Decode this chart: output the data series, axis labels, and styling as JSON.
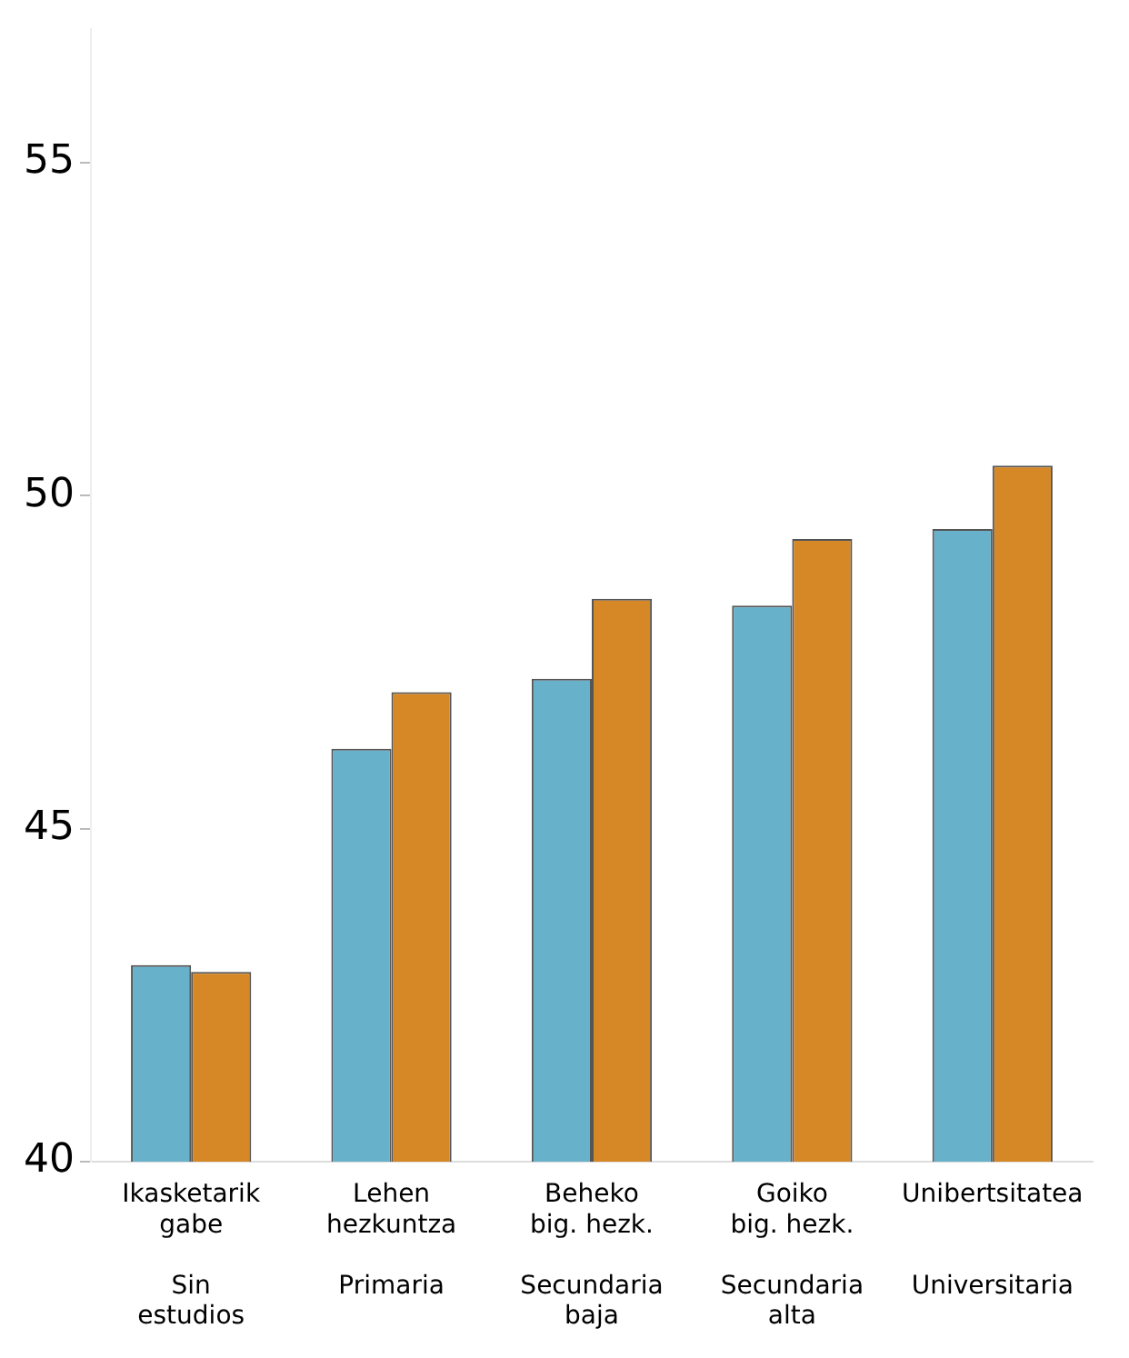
{
  "chart_data": {
    "type": "bar",
    "categories": [
      "Ikasketarik\ngabe\n\nSin\nestudios",
      "Lehen\nhezkuntza\n\nPrimaria",
      "Beheko\nbig. hezk.\n\nSecundaria\nbaja",
      "Goiko\nbig. hezk.\n\nSecundaria\nalta",
      "Unibertsitatea\n\n\nUniversitaria"
    ],
    "series": [
      {
        "color": "#67b1cb",
        "values": [
          42.95,
          46.2,
          47.25,
          48.35,
          49.5
        ]
      },
      {
        "color": "#d68726",
        "values": [
          42.85,
          47.05,
          48.45,
          49.35,
          50.45
        ]
      }
    ],
    "ylim": [
      40,
      57
    ],
    "yticks": [
      40,
      45,
      50,
      55
    ],
    "grid": false,
    "legend": false
  }
}
